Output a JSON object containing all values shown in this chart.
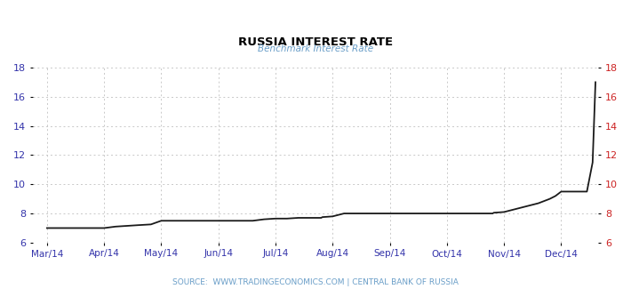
{
  "title": "RUSSIA INTEREST RATE",
  "subtitle": "Benchmark Interest Rate",
  "title_color": "#000000",
  "subtitle_color": "#6a9ec8",
  "source_text": "SOURCE:  WWW.TRADINGECONOMICS.COM | CENTRAL BANK OF RUSSIA",
  "source_color": "#6a9ec8",
  "line_color": "#1a1a1a",
  "line_width": 1.3,
  "background_color": "#ffffff",
  "grid_color": "#c8c8c8",
  "left_tick_color": "#3333aa",
  "right_tick_color": "#cc2222",
  "ylim": [
    6,
    18
  ],
  "yticks": [
    6,
    8,
    10,
    12,
    14,
    16,
    18
  ],
  "x_labels": [
    "Mar/14",
    "Apr/14",
    "May/14",
    "Jun/14",
    "Jul/14",
    "Aug/14",
    "Sep/14",
    "Oct/14",
    "Nov/14",
    "Dec/14"
  ],
  "x_tick_positions": [
    0,
    1,
    2,
    3,
    4,
    5,
    6,
    7,
    8,
    9
  ],
  "x_data": [
    0.0,
    0.2,
    0.4,
    0.6,
    0.8,
    1.0,
    1.2,
    1.4,
    1.6,
    1.82,
    2.0,
    2.2,
    2.4,
    2.6,
    2.8,
    3.0,
    3.2,
    3.4,
    3.6,
    3.8,
    4.0,
    4.2,
    4.4,
    4.6,
    4.8,
    4.82,
    5.0,
    5.2,
    5.4,
    5.6,
    5.8,
    6.0,
    6.2,
    6.4,
    6.6,
    6.8,
    7.0,
    7.2,
    7.4,
    7.6,
    7.8,
    7.82,
    8.0,
    8.2,
    8.4,
    8.6,
    8.8,
    8.9,
    9.0,
    9.1,
    9.15,
    9.2,
    9.3,
    9.38,
    9.45,
    9.5,
    9.55,
    9.6
  ],
  "y_data": [
    7.0,
    7.0,
    7.0,
    7.0,
    7.0,
    7.0,
    7.1,
    7.15,
    7.2,
    7.25,
    7.5,
    7.5,
    7.5,
    7.5,
    7.5,
    7.5,
    7.5,
    7.5,
    7.5,
    7.6,
    7.65,
    7.65,
    7.7,
    7.7,
    7.7,
    7.75,
    7.8,
    8.0,
    8.0,
    8.0,
    8.0,
    8.0,
    8.0,
    8.0,
    8.0,
    8.0,
    8.0,
    8.0,
    8.0,
    8.0,
    8.0,
    8.05,
    8.1,
    8.3,
    8.5,
    8.7,
    9.0,
    9.2,
    9.5,
    9.5,
    9.5,
    9.5,
    9.5,
    9.5,
    9.5,
    10.5,
    11.5,
    17.0
  ]
}
